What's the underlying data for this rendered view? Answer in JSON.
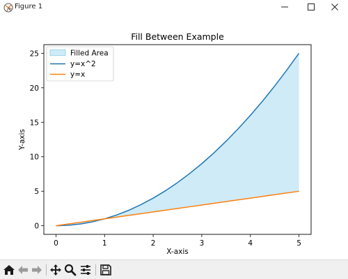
{
  "window": {
    "title": "Figure 1",
    "icons": {
      "app": "matplotlib-figure-icon",
      "minimize": "minimize-icon",
      "maximize": "maximize-icon",
      "close": "close-icon"
    }
  },
  "toolbar": {
    "items": [
      {
        "name": "home-button",
        "icon": "home-icon"
      },
      {
        "name": "back-button",
        "icon": "arrow-left-icon"
      },
      {
        "name": "forward-button",
        "icon": "arrow-right-icon"
      },
      {
        "name": "pan-button",
        "icon": "move-icon"
      },
      {
        "name": "zoom-button",
        "icon": "magnifier-icon"
      },
      {
        "name": "configure-subplots-button",
        "icon": "sliders-icon"
      },
      {
        "name": "save-button",
        "icon": "floppy-disk-icon"
      }
    ]
  },
  "chart_data": {
    "type": "line",
    "title": "Fill Between Example",
    "xlabel": "X-axis",
    "ylabel": "Y-axis",
    "xlim": [
      -0.25,
      5.25
    ],
    "ylim": [
      -1.25,
      26.25
    ],
    "xticks": [
      0,
      1,
      2,
      3,
      4,
      5
    ],
    "yticks": [
      0,
      5,
      10,
      15,
      20,
      25
    ],
    "grid": false,
    "legend": {
      "placement": "upper-left",
      "entries": [
        "Filled Area",
        "y=x^2",
        "y=x"
      ]
    },
    "x": [
      0,
      0.25,
      0.5,
      0.75,
      1,
      1.25,
      1.5,
      1.75,
      2,
      2.25,
      2.5,
      2.75,
      3,
      3.25,
      3.5,
      3.75,
      4,
      4.25,
      4.5,
      4.75,
      5
    ],
    "series": [
      {
        "name": "y=x^2",
        "color": "#1f77b4",
        "values": [
          0,
          0.0625,
          0.25,
          0.5625,
          1,
          1.5625,
          2.25,
          3.0625,
          4,
          5.0625,
          6.25,
          7.5625,
          9,
          10.5625,
          12.25,
          14.0625,
          16,
          18.0625,
          20.25,
          22.5625,
          25
        ]
      },
      {
        "name": "y=x",
        "color": "#ff7f0e",
        "values": [
          0,
          0.25,
          0.5,
          0.75,
          1,
          1.25,
          1.5,
          1.75,
          2,
          2.25,
          2.5,
          2.75,
          3,
          3.25,
          3.5,
          3.75,
          4,
          4.25,
          4.5,
          4.75,
          5
        ]
      }
    ],
    "fill": {
      "name": "Filled Area",
      "between": [
        "y=x^2",
        "y=x"
      ],
      "color": "#87ceeb",
      "alpha": 0.4
    }
  }
}
